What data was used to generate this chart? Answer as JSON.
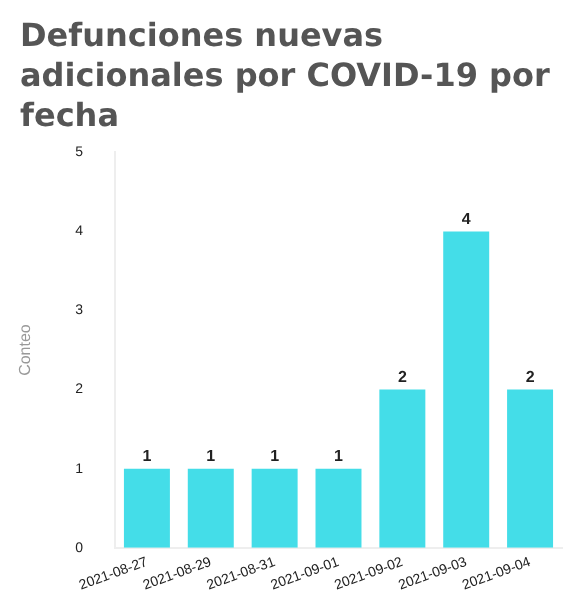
{
  "chart_data": {
    "type": "bar",
    "title": "Defunciones nuevas adicionales por COVID-19 por fecha",
    "ylabel": "Conteo",
    "categories": [
      "2021-08-27",
      "2021-08-29",
      "2021-08-31",
      "2021-09-01",
      "2021-09-02",
      "2021-09-03",
      "2021-09-04"
    ],
    "values": [
      1,
      1,
      1,
      1,
      2,
      4,
      2
    ],
    "color": "#44dde8",
    "ylim": [
      0,
      5
    ],
    "yticks": [
      0,
      1,
      2,
      3,
      4,
      5
    ],
    "grid": false,
    "data_labels": true,
    "legend": false
  }
}
